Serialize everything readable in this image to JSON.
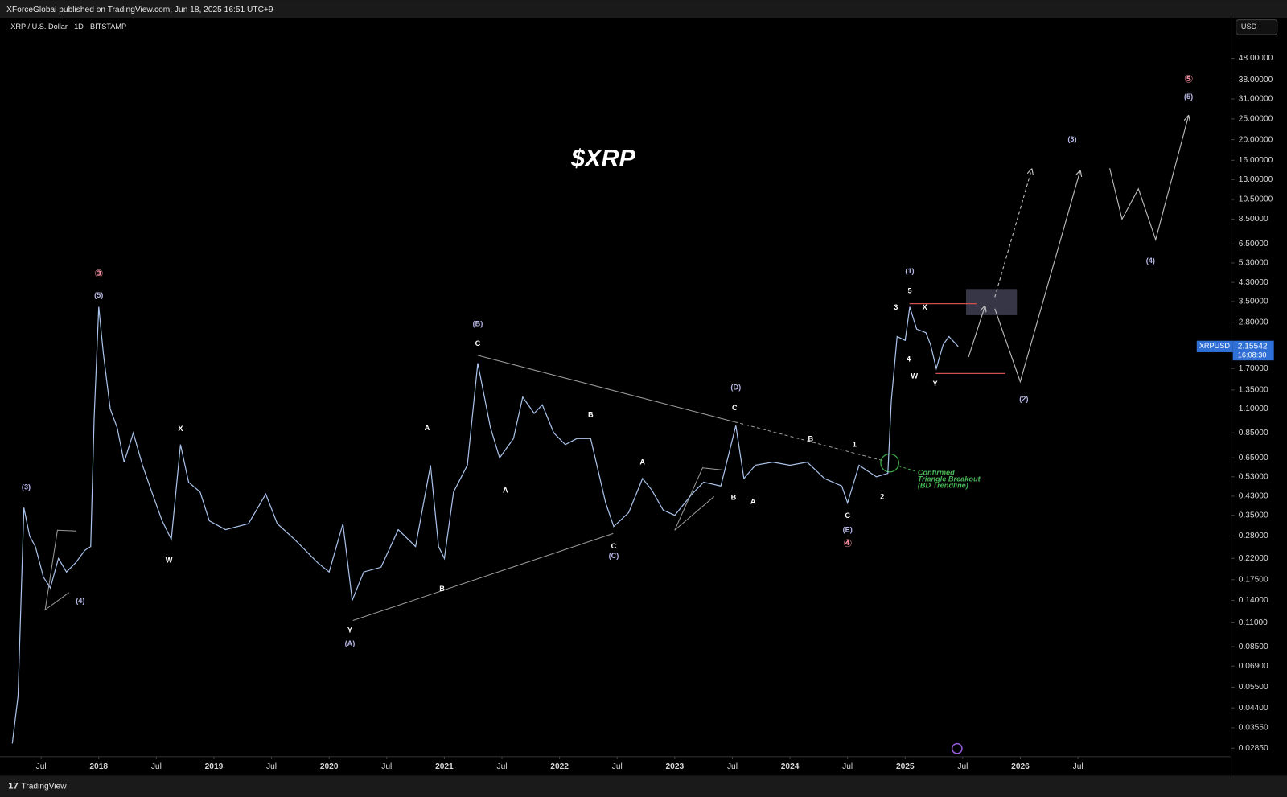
{
  "header": {
    "published": "XForceGlobal published on TradingView.com, Jun 18, 2025 16:51 UTC+9"
  },
  "footer": {
    "brand": "TradingView"
  },
  "chart_data": {
    "type": "line",
    "symbol_title": "XRP / U.S. Dollar · 1D · BITSTAMP",
    "title": "$XRP",
    "note": [
      "Confirmed",
      "Triangle Breakout",
      "(BD Trendline)"
    ],
    "currency": "USD",
    "symbol": "XRPUSD",
    "last_price": 2.15542,
    "countdown": "16:08:30",
    "log_scale": true,
    "grid": false,
    "xlim": [
      2017.2,
      2027.83
    ],
    "ylim": [
      0.026,
      74
    ],
    "xticks": [
      {
        "value": 2017.5,
        "label": "Jul"
      },
      2018,
      {
        "value": 2018.5,
        "label": "Jul"
      },
      2019,
      {
        "value": 2019.5,
        "label": "Jul"
      },
      2020,
      {
        "value": 2020.5,
        "label": "Jul"
      },
      2021,
      {
        "value": 2021.5,
        "label": "Jul"
      },
      2022,
      {
        "value": 2022.5,
        "label": "Jul"
      },
      2023,
      {
        "value": 2023.5,
        "label": "Jul"
      },
      2024,
      {
        "value": 2024.5,
        "label": "Jul"
      },
      2025,
      {
        "value": 2025.5,
        "label": "Jul"
      },
      2026,
      {
        "value": 2026.5,
        "label": "Jul"
      }
    ],
    "yticks": [
      {
        "value": 48,
        "label": "48.00000"
      },
      {
        "value": 38,
        "label": "38.00000"
      },
      {
        "value": 31,
        "label": "31.00000"
      },
      {
        "value": 25,
        "label": "25.00000"
      },
      {
        "value": 20,
        "label": "20.00000"
      },
      {
        "value": 16,
        "label": "16.00000"
      },
      {
        "value": 13,
        "label": "13.00000"
      },
      {
        "value": 10.5,
        "label": "10.50000"
      },
      {
        "value": 8.5,
        "label": "8.50000"
      },
      {
        "value": 6.5,
        "label": "6.50000"
      },
      {
        "value": 5.3,
        "label": "5.30000"
      },
      {
        "value": 4.3,
        "label": "4.30000"
      },
      {
        "value": 3.5,
        "label": "3.50000"
      },
      {
        "value": 2.8,
        "label": "2.80000"
      },
      {
        "value": 1.7,
        "label": "1.70000"
      },
      {
        "value": 1.35,
        "label": "1.35000"
      },
      {
        "value": 1.1,
        "label": "1.10000"
      },
      {
        "value": 0.85,
        "label": "0.85000"
      },
      {
        "value": 0.65,
        "label": "0.65000"
      },
      {
        "value": 0.53,
        "label": "0.53000"
      },
      {
        "value": 0.43,
        "label": "0.43000"
      },
      {
        "value": 0.35,
        "label": "0.35000"
      },
      {
        "value": 0.28,
        "label": "0.28000"
      },
      {
        "value": 0.22,
        "label": "0.22000"
      },
      {
        "value": 0.175,
        "label": "0.17500"
      },
      {
        "value": 0.14,
        "label": "0.14000"
      },
      {
        "value": 0.11,
        "label": "0.11000"
      },
      {
        "value": 0.085,
        "label": "0.08500"
      },
      {
        "value": 0.069,
        "label": "0.06900"
      },
      {
        "value": 0.055,
        "label": "0.05500"
      },
      {
        "value": 0.044,
        "label": "0.04400"
      },
      {
        "value": 0.0355,
        "label": "0.03550"
      },
      {
        "value": 0.0285,
        "label": "0.02850"
      }
    ],
    "x": [
      2017.25,
      2017.3,
      2017.35,
      2017.4,
      2017.45,
      2017.52,
      2017.58,
      2017.65,
      2017.72,
      2017.8,
      2017.88,
      2017.93,
      2017.96,
      2018,
      2018.04,
      2018.1,
      2018.16,
      2018.22,
      2018.3,
      2018.38,
      2018.46,
      2018.55,
      2018.63,
      2018.71,
      2018.78,
      2018.88,
      2018.96,
      2019.1,
      2019.3,
      2019.45,
      2019.55,
      2019.7,
      2019.9,
      2020,
      2020.12,
      2020.2,
      2020.3,
      2020.45,
      2020.6,
      2020.75,
      2020.88,
      2020.95,
      2021,
      2021.08,
      2021.2,
      2021.29,
      2021.4,
      2021.48,
      2021.6,
      2021.68,
      2021.78,
      2021.85,
      2021.95,
      2022.05,
      2022.15,
      2022.27,
      2022.4,
      2022.47,
      2022.6,
      2022.72,
      2022.8,
      2022.9,
      2023,
      2023.15,
      2023.25,
      2023.4,
      2023.53,
      2023.6,
      2023.7,
      2023.85,
      2024,
      2024.15,
      2024.3,
      2024.45,
      2024.5,
      2024.6,
      2024.75,
      2024.85,
      2024.88,
      2024.93,
      2025,
      2025.04,
      2025.1,
      2025.18,
      2025.22,
      2025.27,
      2025.33,
      2025.38,
      2025.46
    ],
    "series": [
      {
        "name": "XRPUSD",
        "color": "#a9c2ea",
        "values": [
          0.03,
          0.05,
          0.38,
          0.28,
          0.25,
          0.18,
          0.16,
          0.22,
          0.19,
          0.21,
          0.24,
          0.25,
          1.0,
          3.3,
          2.0,
          1.1,
          0.9,
          0.62,
          0.85,
          0.6,
          0.45,
          0.33,
          0.27,
          0.75,
          0.5,
          0.45,
          0.33,
          0.3,
          0.32,
          0.44,
          0.32,
          0.27,
          0.21,
          0.19,
          0.32,
          0.14,
          0.19,
          0.2,
          0.3,
          0.25,
          0.6,
          0.25,
          0.22,
          0.45,
          0.6,
          1.8,
          0.9,
          0.65,
          0.8,
          1.25,
          1.05,
          1.15,
          0.85,
          0.75,
          0.8,
          0.8,
          0.4,
          0.31,
          0.36,
          0.52,
          0.46,
          0.37,
          0.35,
          0.44,
          0.5,
          0.48,
          0.92,
          0.52,
          0.6,
          0.62,
          0.6,
          0.62,
          0.52,
          0.48,
          0.4,
          0.6,
          0.53,
          0.55,
          1.2,
          2.4,
          2.3,
          3.3,
          2.6,
          2.5,
          2.2,
          1.7,
          2.2,
          2.4,
          2.155
        ]
      }
    ],
    "annotations": [
      {
        "text": "③",
        "x": 2018.0,
        "y": 4.7,
        "color": "#f08a9a"
      },
      {
        "text": "(5)",
        "x": 2018.0,
        "y": 3.73,
        "color": "#b8b8e8"
      },
      {
        "text": "(3)",
        "x": 2017.37,
        "y": 0.473,
        "color": "#b8b8e8"
      },
      {
        "text": "(4)",
        "x": 2017.84,
        "y": 0.139,
        "color": "#b8b8e8"
      },
      {
        "text": "X",
        "x": 2018.71,
        "y": 0.885,
        "color": "#ffffff"
      },
      {
        "text": "W",
        "x": 2018.61,
        "y": 0.215,
        "color": "#ffffff"
      },
      {
        "text": "Y",
        "x": 2020.18,
        "y": 0.101,
        "color": "#ffffff"
      },
      {
        "text": "(A)",
        "x": 2020.18,
        "y": 0.0875,
        "color": "#b8b8e8"
      },
      {
        "text": "A",
        "x": 2020.85,
        "y": 0.893,
        "color": "#ffffff"
      },
      {
        "text": "B",
        "x": 2020.98,
        "y": 0.158,
        "color": "#ffffff"
      },
      {
        "text": "(B)",
        "x": 2021.29,
        "y": 2.74,
        "color": "#b8b8e8"
      },
      {
        "text": "C",
        "x": 2021.29,
        "y": 2.22,
        "color": "#ffffff"
      },
      {
        "text": "A",
        "x": 2021.53,
        "y": 0.457,
        "color": "#ffffff"
      },
      {
        "text": "B",
        "x": 2022.27,
        "y": 1.03,
        "color": "#ffffff"
      },
      {
        "text": "C",
        "x": 2022.47,
        "y": 0.25,
        "color": "#ffffff"
      },
      {
        "text": "(C)",
        "x": 2022.47,
        "y": 0.225,
        "color": "#b8b8e8"
      },
      {
        "text": "A",
        "x": 2022.72,
        "y": 0.617,
        "color": "#ffffff"
      },
      {
        "text": "(D)",
        "x": 2023.53,
        "y": 1.38,
        "color": "#b8b8e8"
      },
      {
        "text": "C",
        "x": 2023.52,
        "y": 1.11,
        "color": "#ffffff"
      },
      {
        "text": "B",
        "x": 2023.51,
        "y": 0.422,
        "color": "#ffffff"
      },
      {
        "text": "A",
        "x": 2023.68,
        "y": 0.404,
        "color": "#ffffff"
      },
      {
        "text": "B",
        "x": 2024.18,
        "y": 0.796,
        "color": "#ffffff"
      },
      {
        "text": "1",
        "x": 2024.56,
        "y": 0.748,
        "color": "#ffffff"
      },
      {
        "text": "2",
        "x": 2024.8,
        "y": 0.426,
        "color": "#ffffff"
      },
      {
        "text": "C",
        "x": 2024.5,
        "y": 0.347,
        "color": "#ffffff"
      },
      {
        "text": "(E)",
        "x": 2024.5,
        "y": 0.299,
        "color": "#b8b8e8"
      },
      {
        "text": "④",
        "x": 2024.5,
        "y": 0.257,
        "color": "#f08a9a"
      },
      {
        "text": "(1)",
        "x": 2025.04,
        "y": 4.83,
        "color": "#b8b8e8"
      },
      {
        "text": "5",
        "x": 2025.04,
        "y": 3.91,
        "color": "#ffffff"
      },
      {
        "text": "3",
        "x": 2024.92,
        "y": 3.27,
        "color": "#ffffff"
      },
      {
        "text": "X",
        "x": 2025.17,
        "y": 3.27,
        "color": "#ffffff"
      },
      {
        "text": "4",
        "x": 2025.03,
        "y": 1.87,
        "color": "#ffffff"
      },
      {
        "text": "W",
        "x": 2025.08,
        "y": 1.56,
        "color": "#ffffff"
      },
      {
        "text": "Y",
        "x": 2025.26,
        "y": 1.44,
        "color": "#ffffff"
      },
      {
        "text": "(2)",
        "x": 2026.03,
        "y": 1.22,
        "color": "#b8b8e8"
      },
      {
        "text": "(3)",
        "x": 2026.45,
        "y": 20.0,
        "color": "#b8b8e8"
      },
      {
        "text": "(4)",
        "x": 2027.13,
        "y": 5.42,
        "color": "#b8b8e8"
      },
      {
        "text": "(5)",
        "x": 2027.46,
        "y": 31.7,
        "color": "#b8b8e8"
      },
      {
        "text": "⑤",
        "x": 2027.46,
        "y": 38.1,
        "color": "#f08a9a"
      }
    ]
  }
}
